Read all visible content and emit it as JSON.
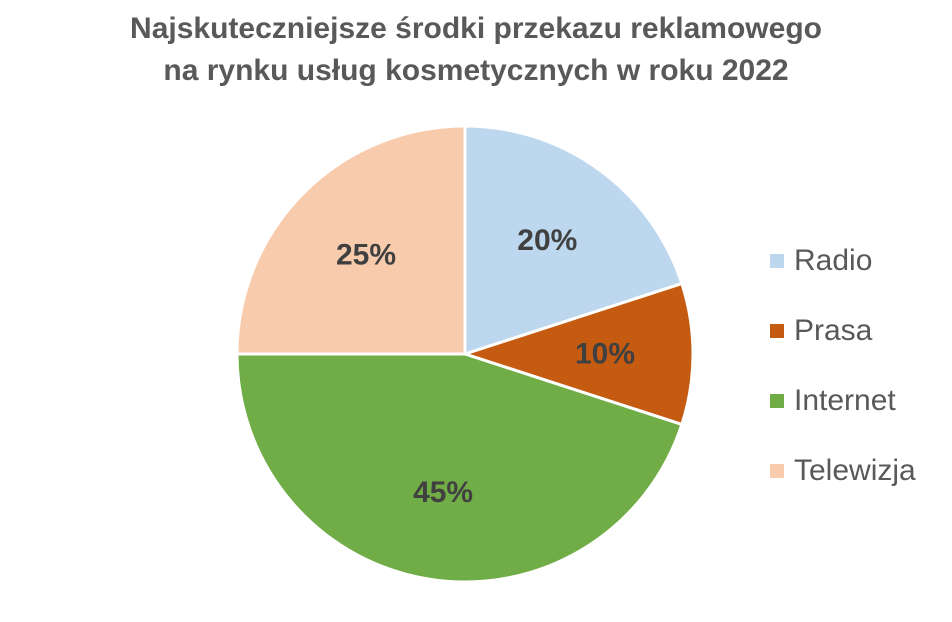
{
  "chart_data": {
    "type": "pie",
    "title_lines": [
      "Najskuteczniejsze środki przekazu reklamowego",
      "na rynku usług kosmetycznych w roku 2022"
    ],
    "categories": [
      "Radio",
      "Prasa",
      "Internet",
      "Telewizja"
    ],
    "values": [
      20,
      10,
      45,
      25
    ],
    "labels": [
      "20%",
      "10%",
      "45%",
      "25%"
    ],
    "colors": [
      "#BDD7EE",
      "#C55A11",
      "#70AD47",
      "#F8CBAD"
    ],
    "legend_position": "right"
  }
}
